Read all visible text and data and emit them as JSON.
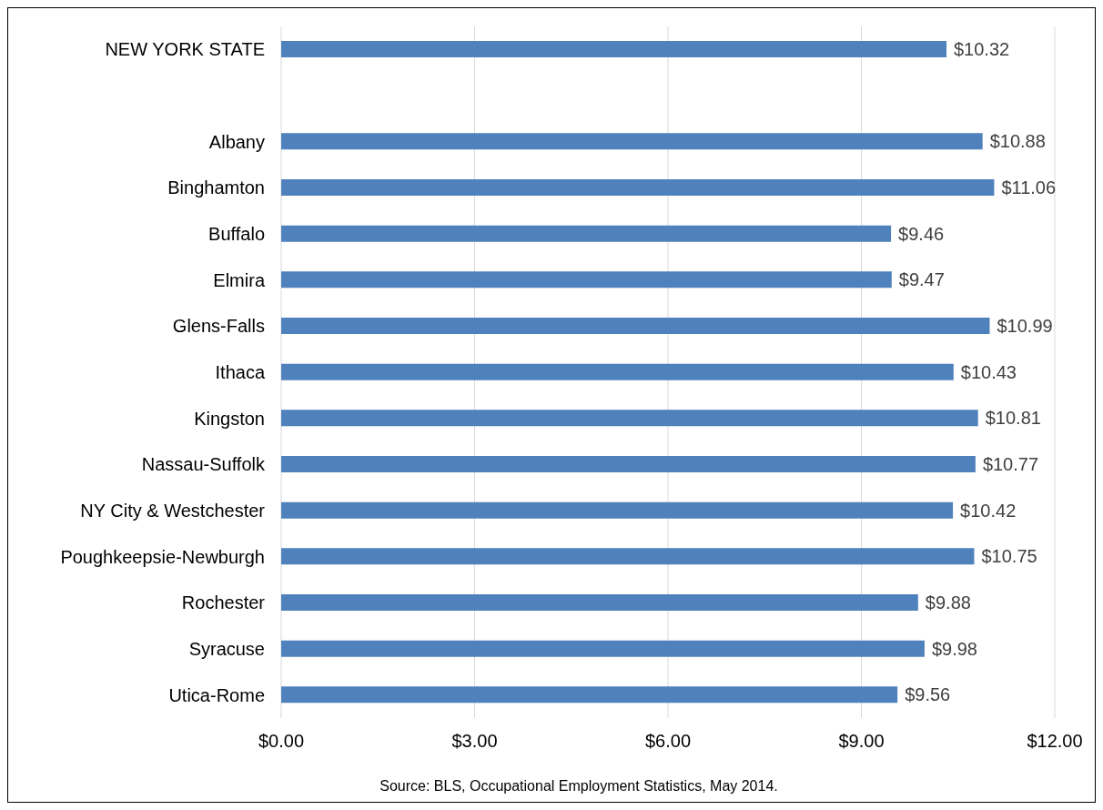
{
  "chart_data": {
    "type": "bar",
    "orientation": "horizontal",
    "categories": [
      "NEW YORK STATE",
      null,
      "Albany",
      "Binghamton",
      "Buffalo",
      "Elmira",
      "Glens-Falls",
      "Ithaca",
      "Kingston",
      "Nassau-Suffolk",
      "NY City & Westchester",
      "Poughkeepsie-Newburgh",
      "Rochester",
      "Syracuse",
      "Utica-Rome"
    ],
    "values": [
      10.32,
      null,
      10.88,
      11.06,
      9.46,
      9.47,
      10.99,
      10.43,
      10.81,
      10.77,
      10.42,
      10.75,
      9.88,
      9.98,
      9.56
    ],
    "value_labels": [
      "$10.32",
      null,
      "$10.88",
      "$11.06",
      "$9.46",
      "$9.47",
      "$10.99",
      "$10.43",
      "$10.81",
      "$10.77",
      "$10.42",
      "$10.75",
      "$9.88",
      "$9.98",
      "$9.56"
    ],
    "color": "#4f81bd",
    "xlim": [
      0,
      12
    ],
    "xticks": [
      {
        "value": 0,
        "label": "$0.00"
      },
      {
        "value": 3,
        "label": "$3.00"
      },
      {
        "value": 6,
        "label": "$6.00"
      },
      {
        "value": 9,
        "label": "$9.00"
      },
      {
        "value": 12,
        "label": "$12.00"
      }
    ],
    "grid": "x",
    "annotations": [
      "Source: BLS, Occupational Employment Statistics, May 2014."
    ]
  }
}
